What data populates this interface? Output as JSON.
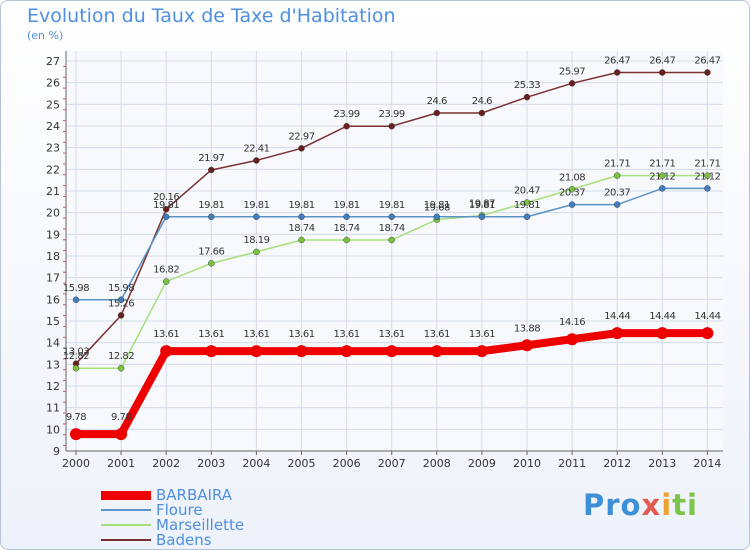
{
  "title": "Evolution du Taux de Taxe d'Habitation",
  "subtitle": "(en %)",
  "logo": [
    "Pro",
    "x",
    "i",
    "ti"
  ],
  "chart_data": {
    "type": "line",
    "categories": [
      "2000",
      "2001",
      "2002",
      "2003",
      "2004",
      "2005",
      "2006",
      "2007",
      "2008",
      "2009",
      "2010",
      "2011",
      "2012",
      "2013",
      "2014"
    ],
    "ylim": [
      9,
      27
    ],
    "yticks": [
      9,
      10,
      11,
      12,
      13,
      14,
      15,
      16,
      17,
      18,
      19,
      20,
      21,
      22,
      23,
      24,
      25,
      26,
      27
    ],
    "grid": true,
    "legend_position": "bottom-left",
    "series": [
      {
        "name": "BARBAIRA",
        "color": "#ee0000",
        "width": 8,
        "markerRadius": 6,
        "values": [
          9.78,
          9.78,
          13.61,
          13.61,
          13.61,
          13.61,
          13.61,
          13.61,
          13.61,
          13.61,
          13.88,
          14.16,
          14.44,
          14.44,
          14.44
        ],
        "labels": [
          "9.78",
          "9.78",
          "13.61",
          "13.61",
          "13.61",
          "13.61",
          "13.61",
          "13.61",
          "13.61",
          "13.61",
          "13.88",
          "14.16",
          "14.44",
          "14.44",
          "14.44"
        ]
      },
      {
        "name": "Floure",
        "color": "#5b93c8",
        "marker": "#3f7fc0",
        "width": 1.5,
        "markerRadius": 3,
        "values": [
          15.98,
          15.98,
          19.81,
          19.81,
          19.81,
          19.81,
          19.81,
          19.81,
          19.81,
          19.81,
          19.81,
          20.37,
          20.37,
          21.12,
          21.12
        ],
        "labels": [
          "15.98",
          "15.98",
          "19.81",
          "19.81",
          "19.81",
          "19.81",
          "19.81",
          "19.81",
          "19.81",
          "19.81",
          "19.81",
          "20.37",
          "20.37",
          "21.12",
          "21.12"
        ]
      },
      {
        "name": "Marseillette",
        "color": "#a6e07a",
        "marker": "#78c43c",
        "width": 1.5,
        "markerRadius": 3,
        "values": [
          12.82,
          12.82,
          16.82,
          17.66,
          18.19,
          18.74,
          18.74,
          18.74,
          19.68,
          19.87,
          20.47,
          21.08,
          21.71,
          21.71,
          21.71
        ],
        "labels": [
          "12.82",
          "12.82",
          "16.82",
          "17.66",
          "18.19",
          "18.74",
          "18.74",
          "18.74",
          "19.68",
          "19.87",
          "20.47",
          "21.08",
          "21.71",
          "21.71",
          "21.71"
        ]
      },
      {
        "name": "Badens",
        "color": "#7a2f2f",
        "marker": "#6a1e1e",
        "width": 1.5,
        "markerRadius": 3,
        "values": [
          13.03,
          15.26,
          20.16,
          21.97,
          22.41,
          22.97,
          23.99,
          23.99,
          24.6,
          24.6,
          25.33,
          25.97,
          26.47,
          26.47,
          26.47
        ],
        "labels": [
          "13.03",
          "15.26",
          "20.16",
          "21.97",
          "22.41",
          "22.97",
          "23.99",
          "23.99",
          "24.6",
          "24.6",
          "25.33",
          "25.97",
          "26.47",
          "26.47",
          "26.47"
        ]
      }
    ]
  }
}
